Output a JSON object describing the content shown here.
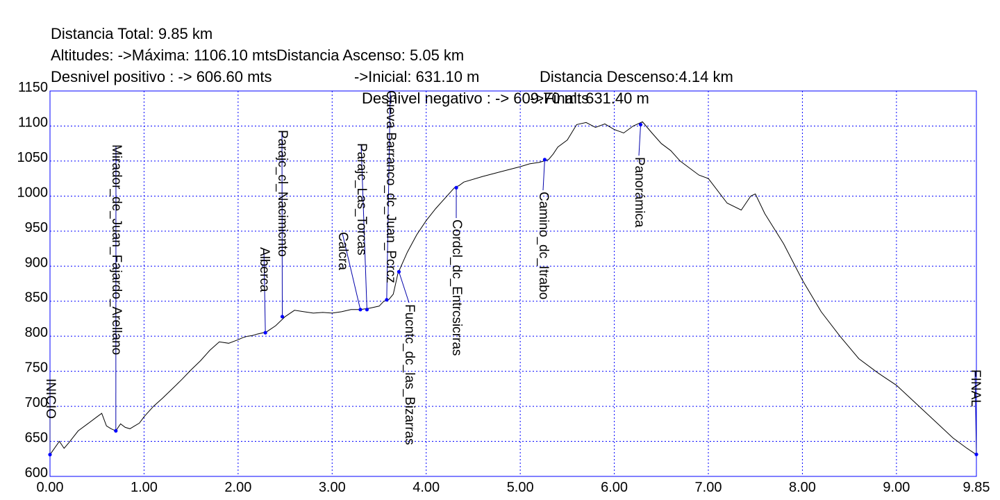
{
  "header": {
    "line1": [
      "Distancia Total: 9.85 km",
      "Distancia Ascenso: 5.05 km",
      "Distancia Descenso:4.14 km"
    ],
    "line2": [
      "Altitudes: ->Máxima: 1106.10 mts",
      "->Inicial: 631.10 m",
      "->Final: 631.40 m"
    ],
    "line3": [
      "Desnivel positivo : -> 606.60 mts",
      "Desnivel negativo : -> 609.70 mts"
    ]
  },
  "colors": {
    "frame": "#0000ff",
    "grid": "#0000ff",
    "profile": "#000000",
    "waypoint": "#0000ff",
    "leader": "#0000aa"
  },
  "chart_data": {
    "type": "line",
    "title": "",
    "xlabel": "",
    "ylabel": "",
    "xlim": [
      0,
      9.85
    ],
    "ylim": [
      600,
      1150
    ],
    "grid": true,
    "x_ticks": [
      0,
      1,
      2,
      3,
      4,
      5,
      6,
      7,
      8,
      9,
      9.85
    ],
    "x_tick_labels": [
      "0.00",
      "1.00",
      "2.00",
      "3.00",
      "4.00",
      "5.00",
      "6.00",
      "7.00",
      "8.00",
      "9.00",
      "9.85"
    ],
    "y_ticks": [
      600,
      650,
      700,
      750,
      800,
      850,
      900,
      950,
      1000,
      1050,
      1100,
      1150
    ],
    "y_tick_labels": [
      "600",
      "650",
      "700",
      "750",
      "800",
      "850",
      "900",
      "950",
      "1000",
      "1050",
      "1100",
      "1150"
    ],
    "series": [
      {
        "x": [
          0,
          0.1,
          0.15,
          0.2,
          0.3,
          0.4,
          0.5,
          0.55,
          0.6,
          0.65,
          0.7,
          0.75,
          0.8,
          0.85,
          0.9,
          0.95,
          1.0,
          1.1,
          1.2,
          1.3,
          1.4,
          1.5,
          1.6,
          1.7,
          1.8,
          1.9,
          2.0,
          2.05,
          2.1,
          2.15,
          2.2,
          2.3,
          2.4,
          2.5,
          2.6,
          2.7,
          2.8,
          2.9,
          3.0,
          3.1,
          3.2,
          3.3,
          3.4,
          3.5,
          3.55,
          3.6,
          3.65,
          3.7,
          3.8,
          3.9,
          4.0,
          4.1,
          4.2,
          4.3,
          4.35,
          4.4,
          4.6,
          4.8,
          5.0,
          5.1,
          5.2,
          5.3,
          5.35,
          5.4,
          5.5,
          5.6,
          5.7,
          5.8,
          5.9,
          6.0,
          6.1,
          6.2,
          6.3,
          6.4,
          6.5,
          6.6,
          6.7,
          6.8,
          6.9,
          7.0,
          7.2,
          7.35,
          7.45,
          7.5,
          7.6,
          7.8,
          8.0,
          8.2,
          8.4,
          8.6,
          8.8,
          9.0,
          9.2,
          9.4,
          9.6,
          9.7,
          9.75,
          9.85
        ],
        "y": [
          631,
          650,
          640,
          648,
          665,
          675,
          685,
          690,
          672,
          668,
          665,
          675,
          670,
          668,
          672,
          676,
          685,
          700,
          712,
          725,
          738,
          752,
          765,
          780,
          792,
          790,
          795,
          798,
          800,
          801,
          803,
          806,
          815,
          828,
          837,
          835,
          833,
          834,
          833,
          835,
          838,
          838,
          840,
          843,
          850,
          852,
          860,
          890,
          920,
          945,
          965,
          982,
          997,
          1012,
          1015,
          1020,
          1028,
          1035,
          1042,
          1046,
          1048,
          1052,
          1060,
          1070,
          1080,
          1102,
          1105,
          1098,
          1103,
          1095,
          1090,
          1100,
          1106,
          1090,
          1075,
          1065,
          1050,
          1040,
          1030,
          1025,
          990,
          980,
          1000,
          1003,
          975,
          932,
          880,
          835,
          800,
          768,
          748,
          730,
          705,
          680,
          655,
          645,
          640,
          631
        ]
      }
    ],
    "waypoints": [
      {
        "label": "INICIO",
        "x": 0.0,
        "y": 631.1
      },
      {
        "label": "Mirador_de_Juan_Fajardo_Arellano",
        "x": 0.7,
        "y": 665
      },
      {
        "label": "Alberca",
        "x": 2.29,
        "y": 805
      },
      {
        "label": "Parajc_cl_Nacimicnto",
        "x": 2.47,
        "y": 828
      },
      {
        "label": "Calcra",
        "x": 3.3,
        "y": 838
      },
      {
        "label": "Parajc_Las_Torcas",
        "x": 3.37,
        "y": 838
      },
      {
        "label": "Cueva Barranco_dc_Juan_Pcrcz",
        "x": 3.58,
        "y": 852
      },
      {
        "label": "Fucntc_dc_las_Bizarras",
        "x": 3.71,
        "y": 892
      },
      {
        "label": "Cordcl_dc_Entrcsicrras",
        "x": 4.32,
        "y": 1012
      },
      {
        "label": "Camino_dc_Itrabo",
        "x": 5.26,
        "y": 1052
      },
      {
        "label": "Panorámica",
        "x": 6.28,
        "y": 1102
      },
      {
        "label": "FINAL",
        "x": 9.85,
        "y": 631.4
      }
    ]
  }
}
